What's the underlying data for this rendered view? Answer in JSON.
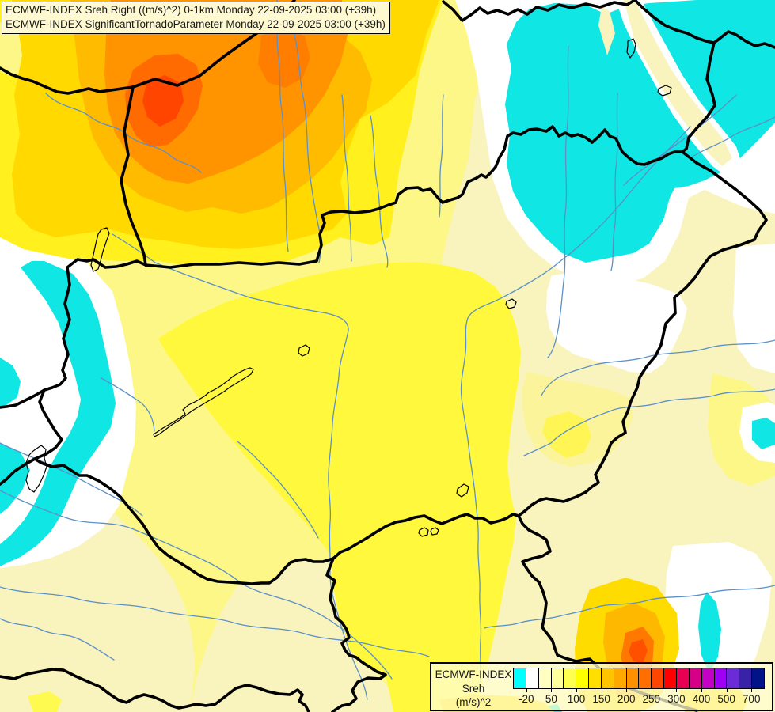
{
  "header": {
    "line1": "ECMWF-INDEX Sreh Right ((m/s)^2) 0-1km Monday 22-09-2025 03:00 (+39h)",
    "line2": "ECMWF-INDEX SignificantTornadoParameter Monday 22-09-2025 03:00 (+39h)"
  },
  "legend": {
    "title_line1": "ECMWF-INDEX",
    "title_line2": "Sreh",
    "title_line3": "(m/s)^2",
    "tick_labels": [
      "-20",
      "50",
      "100",
      "150",
      "200",
      "250",
      "300",
      "400",
      "500",
      "700"
    ],
    "colors": [
      "#00FFFF",
      "#FFFFFF",
      "#FFFFC0",
      "#FFFF9B",
      "#FFFF4F",
      "#FFFF00",
      "#FFDF00",
      "#FFC400",
      "#FFA800",
      "#FF9000",
      "#FF6E00",
      "#FF4600",
      "#FF0000",
      "#E80053",
      "#D60087",
      "#C400C4",
      "#9D00F5",
      "#6B2BD6",
      "#3A22A8",
      "#001389"
    ]
  },
  "map_palette": {
    "base_fill": "#F9F4BE",
    "light_yellow": "#FDF787",
    "bright_yellow": "#FFF83C",
    "vivid_yellow": "#FFF01E",
    "gold": "#FFD900",
    "amber": "#FFBB00",
    "orange": "#FF9400",
    "red_orange": "#FF6B00",
    "red_core": "#FF4500",
    "cyan": "#10E6E3",
    "white": "#FFFFFF",
    "border_color": "#000000",
    "river_color": "#5C90C8"
  }
}
